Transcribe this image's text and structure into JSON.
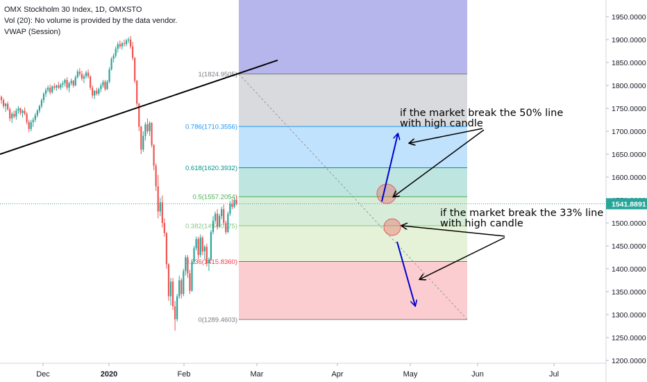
{
  "legend": {
    "symbol_line": "OMX Stockholm 30 Index, 1D, OMXSTO",
    "volume_line": "Vol (20): No volume is provided by the data vendor.",
    "vwap_line": "VWAP (Session)"
  },
  "colors": {
    "up": "#26a69a",
    "down": "#ef5350",
    "trendline": "#000000",
    "arrow_blue": "#0000cc",
    "price_tag": "#26a69a"
  },
  "chart_data": {
    "type": "candlestick",
    "symbol": "OMX Stockholm 30 Index",
    "interval": "1D",
    "exchange": "OMXSTO",
    "y_axis": {
      "min": 1200,
      "max": 1950,
      "ticks": [
        "1950.0000",
        "1900.0000",
        "1850.0000",
        "1800.0000",
        "1750.0000",
        "1700.0000",
        "1650.0000",
        "1600.0000",
        "1550.0000",
        "1500.0000",
        "1450.0000",
        "1400.0000",
        "1350.0000",
        "1300.0000",
        "1250.0000",
        "1200.0000"
      ]
    },
    "x_axis": {
      "labels": [
        "Dec",
        "2020",
        "Feb",
        "Mar",
        "Apr",
        "May",
        "Jun",
        "Jul"
      ]
    },
    "last_price": "1541.8891",
    "fib_levels": [
      {
        "ratio": "1",
        "value": 1824.9505,
        "label": "1(1824.9505)",
        "color": "#787b86"
      },
      {
        "ratio": "0.786",
        "value": 1710.3556,
        "label": "0.786(1710.3556)",
        "color": "#2196f3"
      },
      {
        "ratio": "0.618",
        "value": 1620.3932,
        "label": "0.618(1620.3932)",
        "color": "#009688"
      },
      {
        "ratio": "0.5",
        "value": 1557.2054,
        "label": "0.5(1557.2054)",
        "color": "#4caf50"
      },
      {
        "ratio": "0.382",
        "value": 1494.0175,
        "label": "0.382(1494.0175)",
        "color": "#81c784"
      },
      {
        "ratio": "0.236",
        "value": 1415.836,
        "label": "0.236(1415.8360)",
        "color": "#f23645"
      },
      {
        "ratio": "0",
        "value": 1289.4603,
        "label": "0(1289.4603)",
        "color": "#787b86"
      }
    ],
    "annotations": [
      {
        "text_lines": [
          "if the market break the 50% line",
          "with high candle"
        ]
      },
      {
        "text_lines": [
          "if the market break the 33% line",
          "with high candle"
        ]
      }
    ],
    "series": [
      {
        "values": [
          [
            1775,
            1778,
            1760,
            1768
          ],
          [
            1768,
            1772,
            1750,
            1755
          ],
          [
            1755,
            1762,
            1742,
            1760
          ],
          [
            1760,
            1765,
            1745,
            1748
          ],
          [
            1748,
            1752,
            1722,
            1728
          ],
          [
            1728,
            1742,
            1718,
            1738
          ],
          [
            1738,
            1745,
            1728,
            1732
          ],
          [
            1732,
            1750,
            1725,
            1745
          ],
          [
            1745,
            1755,
            1738,
            1750
          ],
          [
            1750,
            1752,
            1735,
            1740
          ],
          [
            1740,
            1748,
            1730,
            1745
          ],
          [
            1745,
            1752,
            1735,
            1738
          ],
          [
            1738,
            1742,
            1715,
            1720
          ],
          [
            1720,
            1725,
            1698,
            1705
          ],
          [
            1705,
            1725,
            1700,
            1720
          ],
          [
            1720,
            1730,
            1710,
            1725
          ],
          [
            1725,
            1740,
            1720,
            1735
          ],
          [
            1735,
            1748,
            1730,
            1745
          ],
          [
            1745,
            1758,
            1740,
            1755
          ],
          [
            1755,
            1772,
            1750,
            1768
          ],
          [
            1768,
            1785,
            1762,
            1782
          ],
          [
            1782,
            1795,
            1775,
            1790
          ],
          [
            1790,
            1800,
            1785,
            1795
          ],
          [
            1795,
            1802,
            1780,
            1785
          ],
          [
            1785,
            1800,
            1782,
            1798
          ],
          [
            1798,
            1805,
            1790,
            1795
          ],
          [
            1795,
            1802,
            1788,
            1800
          ],
          [
            1800,
            1808,
            1792,
            1795
          ],
          [
            1795,
            1805,
            1790,
            1802
          ],
          [
            1802,
            1810,
            1795,
            1805
          ],
          [
            1805,
            1815,
            1798,
            1812
          ],
          [
            1812,
            1818,
            1790,
            1795
          ],
          [
            1795,
            1808,
            1785,
            1805
          ],
          [
            1805,
            1815,
            1800,
            1810
          ],
          [
            1810,
            1812,
            1795,
            1800
          ],
          [
            1800,
            1822,
            1798,
            1818
          ],
          [
            1818,
            1835,
            1815,
            1830
          ],
          [
            1830,
            1838,
            1820,
            1825
          ],
          [
            1825,
            1832,
            1810,
            1815
          ],
          [
            1815,
            1825,
            1805,
            1820
          ],
          [
            1820,
            1832,
            1815,
            1828
          ],
          [
            1828,
            1835,
            1815,
            1820
          ],
          [
            1820,
            1822,
            1790,
            1795
          ],
          [
            1795,
            1800,
            1772,
            1778
          ],
          [
            1778,
            1790,
            1770,
            1788
          ],
          [
            1788,
            1795,
            1778,
            1782
          ],
          [
            1782,
            1795,
            1778,
            1792
          ],
          [
            1792,
            1805,
            1785,
            1800
          ],
          [
            1800,
            1812,
            1795,
            1808
          ],
          [
            1808,
            1812,
            1788,
            1792
          ],
          [
            1792,
            1812,
            1790,
            1808
          ],
          [
            1808,
            1840,
            1805,
            1835
          ],
          [
            1835,
            1862,
            1832,
            1858
          ],
          [
            1858,
            1870,
            1850,
            1865
          ],
          [
            1865,
            1885,
            1860,
            1880
          ],
          [
            1880,
            1895,
            1872,
            1890
          ],
          [
            1890,
            1898,
            1880,
            1885
          ],
          [
            1885,
            1895,
            1878,
            1892
          ],
          [
            1892,
            1900,
            1885,
            1890
          ],
          [
            1890,
            1902,
            1885,
            1898
          ],
          [
            1898,
            1905,
            1892,
            1900
          ],
          [
            1900,
            1908,
            1880,
            1885
          ],
          [
            1885,
            1895,
            1855,
            1860
          ],
          [
            1860,
            1862,
            1805,
            1810
          ],
          [
            1810,
            1812,
            1755,
            1760
          ],
          [
            1760,
            1762,
            1700,
            1710
          ],
          [
            1710,
            1712,
            1650,
            1660
          ],
          [
            1660,
            1700,
            1655,
            1690
          ],
          [
            1690,
            1720,
            1680,
            1715
          ],
          [
            1715,
            1728,
            1695,
            1700
          ],
          [
            1700,
            1722,
            1690,
            1718
          ],
          [
            1718,
            1720,
            1665,
            1670
          ],
          [
            1670,
            1672,
            1615,
            1625
          ],
          [
            1625,
            1630,
            1570,
            1580
          ],
          [
            1580,
            1605,
            1510,
            1525
          ],
          [
            1525,
            1555,
            1515,
            1545
          ],
          [
            1545,
            1560,
            1490,
            1500
          ],
          [
            1500,
            1510,
            1470,
            1478
          ],
          [
            1478,
            1480,
            1400,
            1410
          ],
          [
            1410,
            1412,
            1330,
            1340
          ],
          [
            1340,
            1380,
            1320,
            1372
          ],
          [
            1372,
            1380,
            1310,
            1318
          ],
          [
            1318,
            1330,
            1265,
            1290
          ],
          [
            1290,
            1345,
            1285,
            1340
          ],
          [
            1340,
            1385,
            1335,
            1375
          ],
          [
            1375,
            1380,
            1335,
            1345
          ],
          [
            1345,
            1400,
            1340,
            1395
          ],
          [
            1395,
            1430,
            1385,
            1425
          ],
          [
            1425,
            1430,
            1380,
            1390
          ],
          [
            1390,
            1398,
            1345,
            1352
          ],
          [
            1352,
            1420,
            1350,
            1415
          ],
          [
            1415,
            1450,
            1410,
            1445
          ],
          [
            1445,
            1470,
            1440,
            1465
          ],
          [
            1465,
            1470,
            1420,
            1430
          ],
          [
            1430,
            1475,
            1425,
            1468
          ],
          [
            1468,
            1472,
            1430,
            1438
          ],
          [
            1438,
            1452,
            1420,
            1448
          ],
          [
            1448,
            1455,
            1405,
            1412
          ],
          [
            1412,
            1425,
            1395,
            1420
          ],
          [
            1420,
            1485,
            1418,
            1480
          ],
          [
            1480,
            1515,
            1475,
            1505
          ],
          [
            1505,
            1525,
            1498,
            1520
          ],
          [
            1520,
            1530,
            1485,
            1492
          ],
          [
            1492,
            1520,
            1490,
            1515
          ],
          [
            1515,
            1535,
            1508,
            1530
          ],
          [
            1530,
            1540,
            1495,
            1500
          ],
          [
            1500,
            1505,
            1475,
            1480
          ],
          [
            1480,
            1525,
            1478,
            1520
          ],
          [
            1520,
            1548,
            1515,
            1542
          ],
          [
            1542,
            1552,
            1530,
            1535
          ],
          [
            1535,
            1555,
            1532,
            1550
          ],
          [
            1550,
            1560,
            1538,
            1542
          ]
        ]
      }
    ]
  }
}
